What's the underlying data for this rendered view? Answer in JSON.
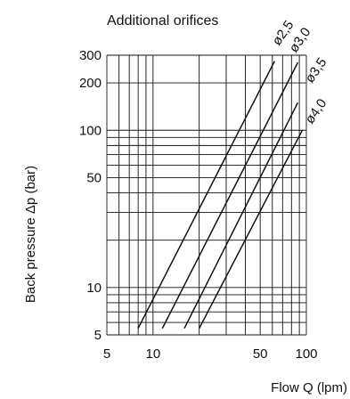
{
  "chart_data": {
    "type": "line",
    "title": "Additional orifices",
    "xlabel": "Flow Q (lpm)",
    "ylabel": "Back pressure Δp (bar)",
    "x_scale": "log",
    "y_scale": "log",
    "xlim": [
      5,
      100
    ],
    "ylim": [
      5,
      300
    ],
    "x_ticks": [
      5,
      10,
      50,
      100
    ],
    "x_tick_labels": [
      "5",
      "10",
      "50",
      "100"
    ],
    "y_ticks": [
      5,
      10,
      50,
      100,
      200,
      300
    ],
    "y_tick_labels": [
      "5",
      "10",
      "50",
      "100",
      "200",
      "300"
    ],
    "grid": true,
    "series": [
      {
        "name": "ø2,5",
        "x": [
          8,
          62
        ],
        "y": [
          5.5,
          275
        ]
      },
      {
        "name": "ø3,0",
        "x": [
          11.5,
          88
        ],
        "y": [
          5.5,
          270
        ]
      },
      {
        "name": "ø3,5",
        "x": [
          16,
          88
        ],
        "y": [
          5.5,
          150
        ]
      },
      {
        "name": "ø4,0",
        "x": [
          20,
          94
        ],
        "y": [
          5.5,
          100
        ]
      }
    ]
  }
}
